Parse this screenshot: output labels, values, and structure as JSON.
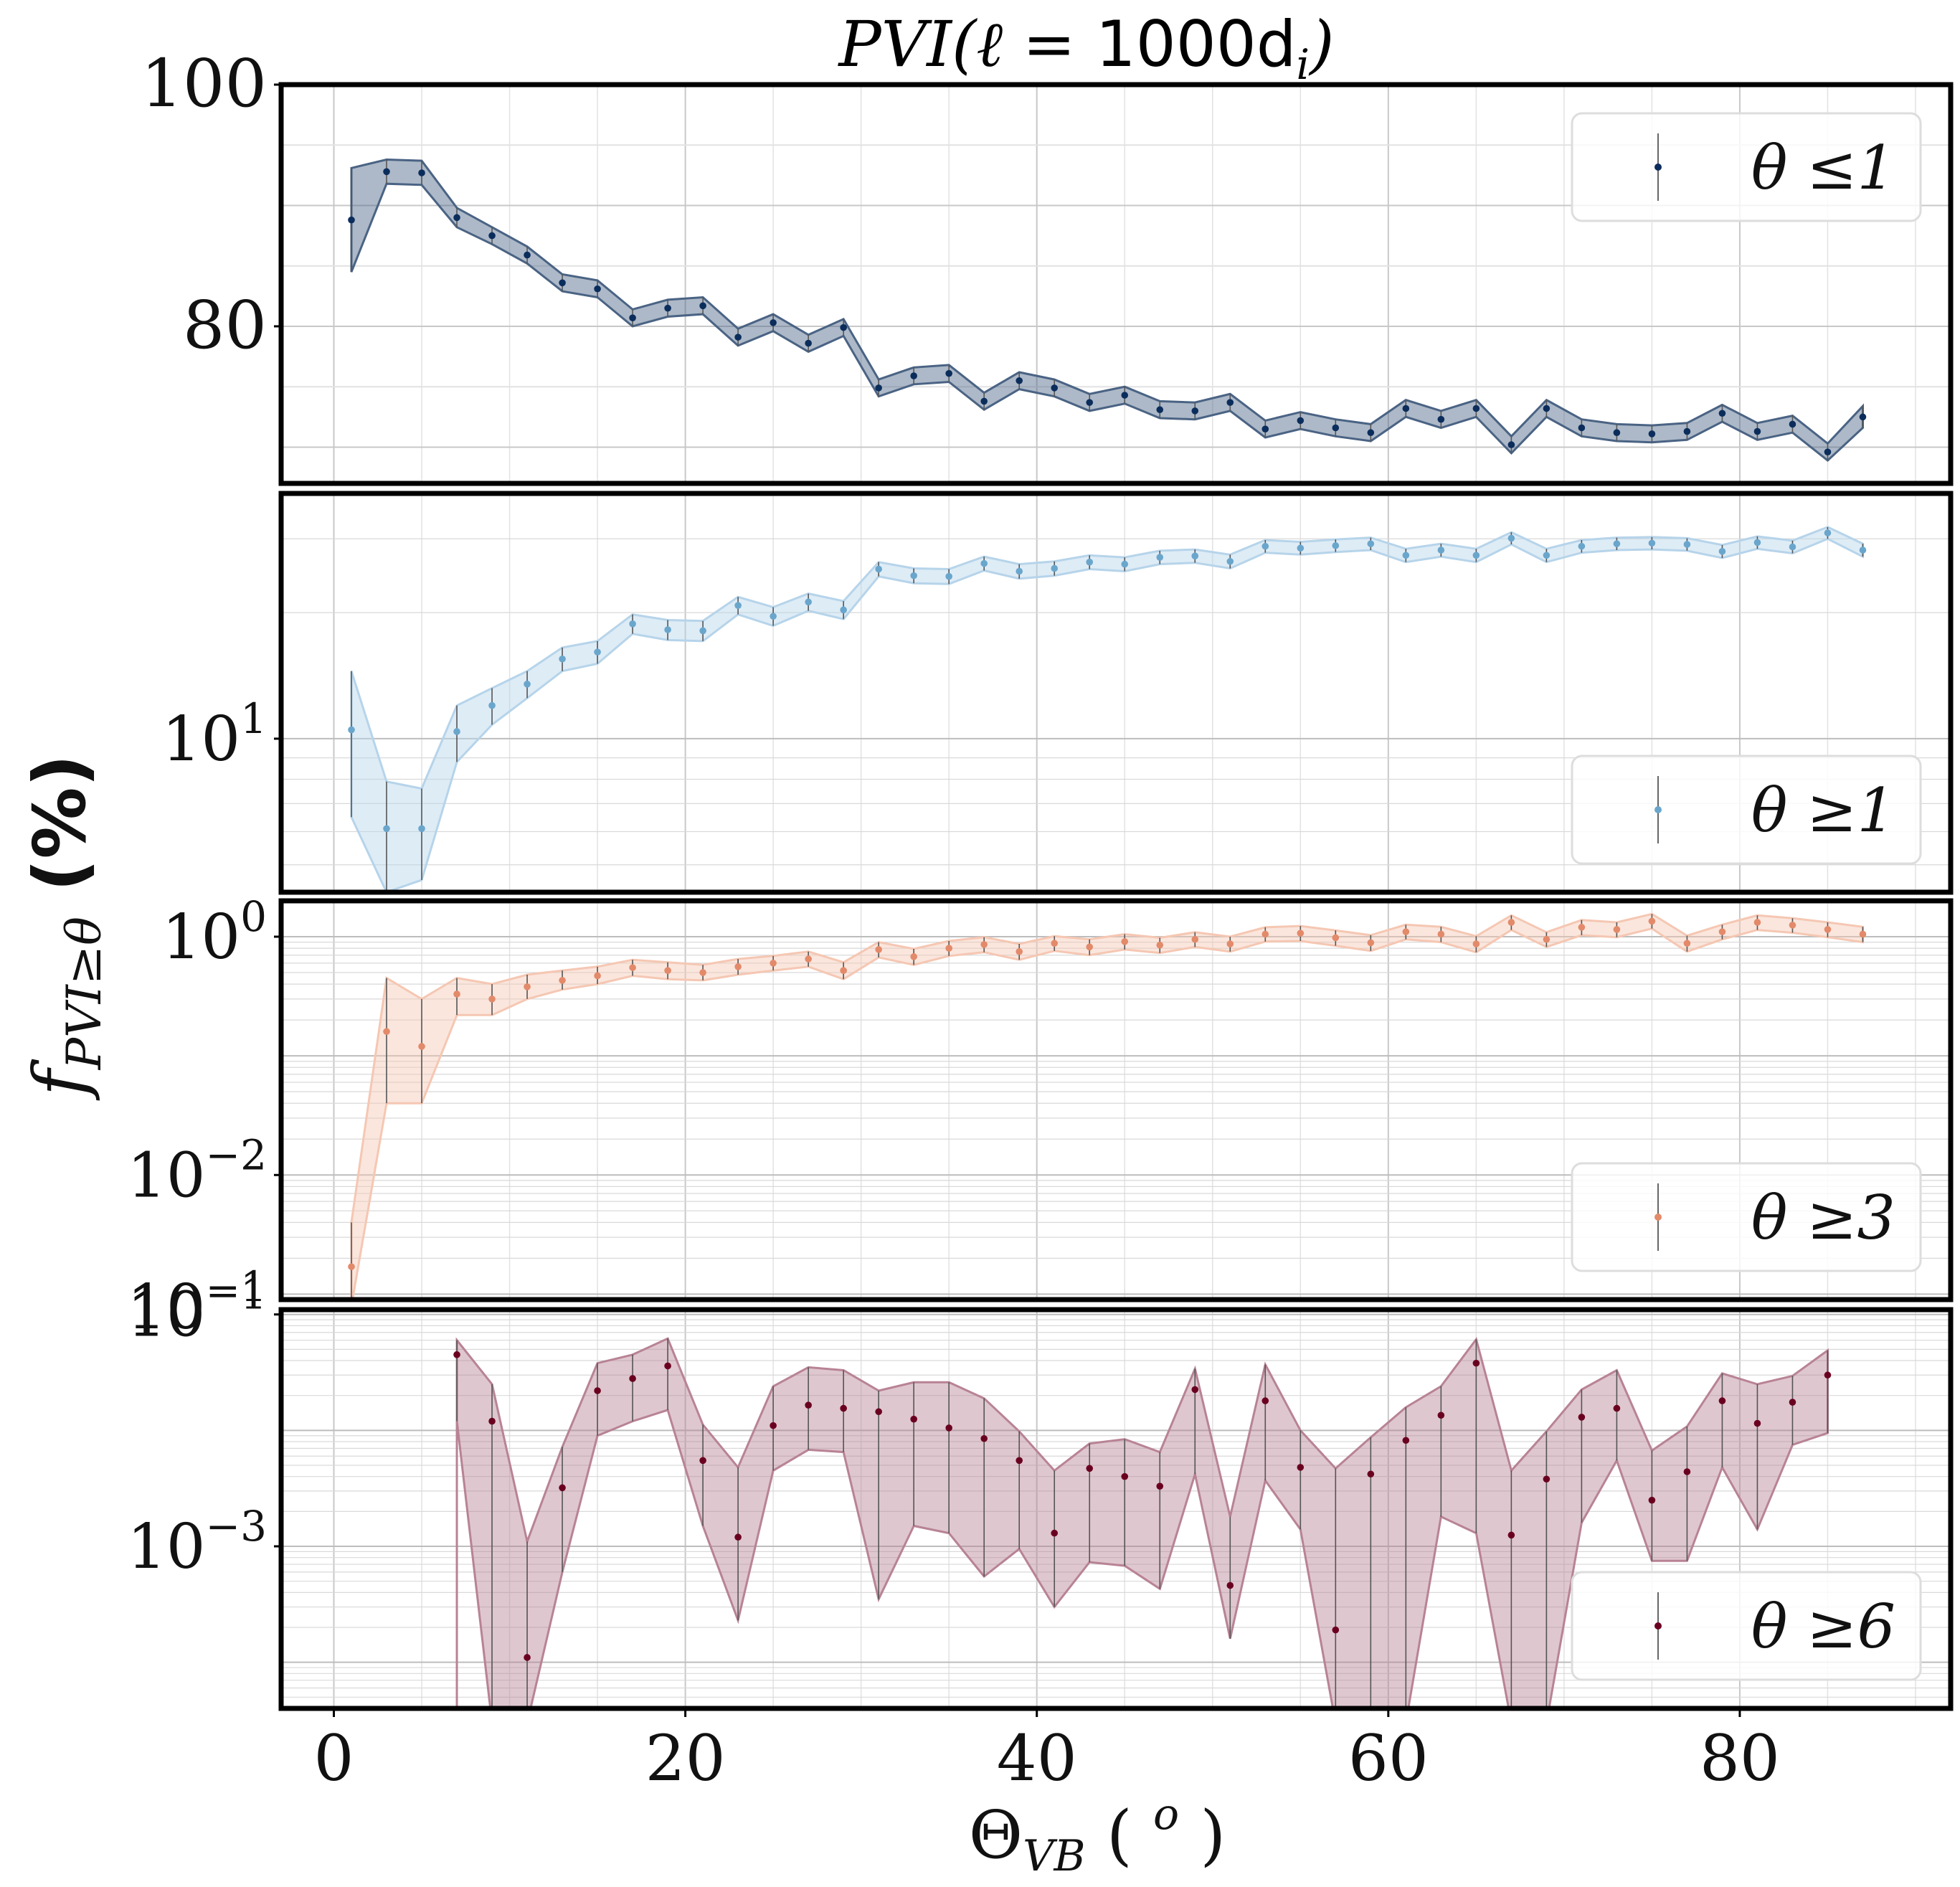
{
  "chart_data": {
    "type": "line",
    "title": "PVI(ℓ = 1000d_i)",
    "title_parts": {
      "prefix": "PVI(ℓ = ",
      "value": "1000d",
      "sub": "i",
      "suffix": ")"
    },
    "xlabel": "Θ_VB ( ° )",
    "xlabel_parts": {
      "main": "Θ",
      "sub": "VB",
      "open": " ( ",
      "sup": "o",
      "close": " )"
    },
    "ylabel": "f_PVI≥θ (%)",
    "ylabel_parts": {
      "main": "f",
      "sub": "PVI≥θ",
      "tail": " (%)"
    },
    "xlim": [
      -3,
      92
    ],
    "x_ticks": [
      0,
      20,
      40,
      60,
      80
    ],
    "x": [
      1,
      3,
      5,
      7,
      9,
      11,
      13,
      15,
      17,
      19,
      21,
      23,
      25,
      27,
      29,
      31,
      33,
      35,
      37,
      39,
      41,
      43,
      45,
      47,
      49,
      51,
      53,
      55,
      57,
      59,
      61,
      63,
      65,
      67,
      69,
      71,
      73,
      75,
      77,
      79,
      81,
      83,
      85,
      87
    ],
    "panels": [
      {
        "legend": "θ ≤1",
        "legend_position": "top-right",
        "color": "#0b2d5c",
        "fill": "#4a6384",
        "yscale": "linear",
        "ylim": [
          67,
          100
        ],
        "y_ticks": [
          {
            "value": 80,
            "label": "80"
          },
          {
            "value": 100,
            "label": "100"
          }
        ],
        "values": [
          88.8,
          92.8,
          92.7,
          89.0,
          87.5,
          85.9,
          83.6,
          83.1,
          80.7,
          81.5,
          81.7,
          79.1,
          80.3,
          78.6,
          79.9,
          74.9,
          75.9,
          76.1,
          73.8,
          75.5,
          74.9,
          73.7,
          74.3,
          73.1,
          73.0,
          73.7,
          71.5,
          72.2,
          71.6,
          71.2,
          73.2,
          72.3,
          73.2,
          70.2,
          73.2,
          71.6,
          71.2,
          71.1,
          71.3,
          72.8,
          71.3,
          71.9,
          69.6,
          72.5
        ],
        "err": [
          4.3,
          1.0,
          1.0,
          0.8,
          0.7,
          0.7,
          0.7,
          0.7,
          0.7,
          0.7,
          0.7,
          0.7,
          0.7,
          0.7,
          0.7,
          0.7,
          0.7,
          0.7,
          0.7,
          0.7,
          0.7,
          0.7,
          0.7,
          0.7,
          0.7,
          0.7,
          0.7,
          0.7,
          0.7,
          0.7,
          0.7,
          0.7,
          0.7,
          0.7,
          0.7,
          0.7,
          0.7,
          0.7,
          0.7,
          0.7,
          0.7,
          0.7,
          0.7,
          0.9
        ]
      },
      {
        "legend": "θ ≥1",
        "legend_position": "bottom-right",
        "color": "#6aa6cc",
        "fill": "#b6d4ea",
        "yscale": "log",
        "ylim": [
          4.3,
          38.5
        ],
        "y_ticks": [
          {
            "value": 10,
            "base": "10",
            "exp": "1"
          }
        ],
        "values": [
          10.5,
          6.1,
          6.1,
          10.4,
          12.0,
          13.5,
          15.5,
          16.1,
          18.8,
          18.2,
          18.1,
          20.8,
          19.6,
          21.2,
          20.3,
          25.4,
          24.5,
          24.4,
          26.2,
          25.1,
          25.5,
          26.4,
          26.1,
          27.1,
          27.3,
          26.5,
          28.8,
          28.5,
          28.9,
          29.2,
          27.4,
          28.2,
          27.4,
          30.1,
          27.4,
          28.8,
          29.2,
          29.3,
          29.1,
          28.0,
          29.4,
          28.7,
          31.0,
          28.2
        ],
        "err": [
          4.0,
          1.8,
          1.5,
          1.6,
          1.2,
          1.0,
          1.0,
          1.0,
          1.0,
          1.0,
          1.0,
          1.0,
          1.0,
          1.0,
          1.0,
          1.0,
          1.0,
          1.0,
          1.0,
          1.0,
          1.0,
          1.0,
          1.0,
          1.0,
          1.0,
          1.0,
          1.0,
          1.0,
          1.0,
          1.0,
          1.0,
          1.0,
          1.0,
          1.0,
          1.0,
          1.0,
          1.0,
          1.0,
          1.0,
          1.0,
          1.0,
          1.0,
          1.0,
          1.0
        ]
      },
      {
        "legend": "θ ≥3",
        "legend_position": "bottom-right",
        "color": "#e38a6a",
        "fill": "#f5c7b3",
        "yscale": "log",
        "ylim": [
          0.0009,
          2.0
        ],
        "y_ticks": [
          {
            "value": 1,
            "base": "10",
            "exp": "0"
          },
          {
            "value": 0.01,
            "base": "10",
            "exp": "−2"
          }
        ],
        "y_tick_below": {
          "base": "10",
          "exp": "−1"
        },
        "values": [
          0.0017,
          0.16,
          0.12,
          0.33,
          0.3,
          0.38,
          0.43,
          0.47,
          0.55,
          0.52,
          0.5,
          0.56,
          0.6,
          0.65,
          0.52,
          0.78,
          0.68,
          0.8,
          0.86,
          0.75,
          0.88,
          0.82,
          0.91,
          0.85,
          0.95,
          0.87,
          1.05,
          1.07,
          0.98,
          0.89,
          1.1,
          1.05,
          0.87,
          1.32,
          0.95,
          1.2,
          1.15,
          1.35,
          0.88,
          1.1,
          1.32,
          1.25,
          1.15,
          1.05
        ],
        "lower": [
          0.0008,
          0.04,
          0.04,
          0.22,
          0.22,
          0.3,
          0.36,
          0.4,
          0.47,
          0.44,
          0.43,
          0.48,
          0.52,
          0.56,
          0.44,
          0.67,
          0.58,
          0.69,
          0.74,
          0.64,
          0.76,
          0.7,
          0.78,
          0.73,
          0.82,
          0.75,
          0.91,
          0.92,
          0.84,
          0.76,
          0.95,
          0.9,
          0.74,
          1.14,
          0.82,
          1.03,
          0.99,
          1.17,
          0.75,
          0.95,
          1.14,
          1.08,
          0.99,
          0.9
        ],
        "upper": [
          0.004,
          0.45,
          0.3,
          0.45,
          0.4,
          0.48,
          0.52,
          0.56,
          0.64,
          0.61,
          0.58,
          0.65,
          0.69,
          0.75,
          0.61,
          0.9,
          0.79,
          0.92,
          0.99,
          0.87,
          1.01,
          0.95,
          1.05,
          0.98,
          1.09,
          1.0,
          1.2,
          1.23,
          1.13,
          1.03,
          1.26,
          1.21,
          1.01,
          1.51,
          1.09,
          1.38,
          1.32,
          1.55,
          1.02,
          1.26,
          1.51,
          1.43,
          1.32,
          1.21
        ]
      },
      {
        "legend": "θ ≥6",
        "legend_position": "bottom-right",
        "color": "#6a0020",
        "fill": "#b88394",
        "yscale": "log",
        "ylim": [
          4e-05,
          0.11
        ],
        "y_ticks": [
          {
            "value": 0.1,
            "base": "10",
            "exp": "−1"
          },
          {
            "value": 0.001,
            "base": "10",
            "exp": "−3"
          }
        ],
        "x_start": 7,
        "values": [
          0.045,
          0.012,
          0.00011,
          0.0032,
          0.022,
          0.028,
          0.036,
          0.0055,
          0.0012,
          0.011,
          0.0165,
          0.0155,
          0.0145,
          0.0125,
          0.0105,
          0.0085,
          0.0055,
          0.0013,
          0.0047,
          0.004,
          0.0033,
          0.0225,
          0.00046,
          0.018,
          0.0048,
          0.00019,
          0.0042,
          0.0082,
          0.0135,
          0.038,
          0.00125,
          0.0038,
          0.013,
          0.0155,
          0.0025,
          0.0044,
          0.018,
          0.0115,
          0.0175,
          0.03
        ],
        "lower": [
          0.012,
          3e-05,
          3e-05,
          0.0006,
          0.009,
          0.012,
          0.015,
          0.0015,
          0.00023,
          0.0045,
          0.0068,
          0.0065,
          0.00035,
          0.0015,
          0.0013,
          0.00055,
          0.00095,
          0.0003,
          0.00073,
          0.00068,
          0.00043,
          0.0042,
          0.00016,
          0.0037,
          0.0014,
          3e-05,
          3e-05,
          3e-05,
          0.0018,
          0.0013,
          3e-05,
          3e-05,
          0.0016,
          0.0055,
          0.00075,
          0.00075,
          0.0048,
          0.0014,
          0.0075,
          0.0095
        ],
        "upper": [
          0.06,
          0.025,
          0.0011,
          0.0072,
          0.038,
          0.045,
          0.062,
          0.0112,
          0.0048,
          0.024,
          0.035,
          0.033,
          0.022,
          0.026,
          0.026,
          0.0189,
          0.0098,
          0.0045,
          0.0077,
          0.0084,
          0.0065,
          0.034,
          0.0018,
          0.037,
          0.01,
          0.0047,
          0.0087,
          0.0158,
          0.024,
          0.061,
          0.0045,
          0.0098,
          0.0225,
          0.033,
          0.0067,
          0.0108,
          0.031,
          0.025,
          0.0295,
          0.049
        ]
      }
    ]
  }
}
